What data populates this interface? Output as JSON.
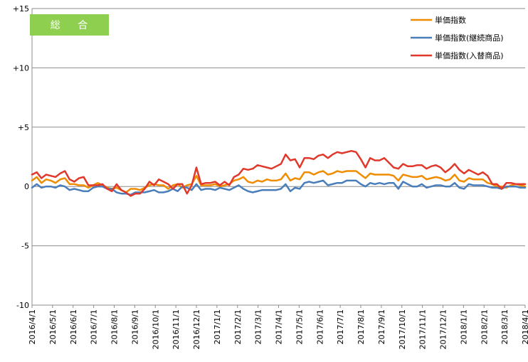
{
  "chart_data": {
    "type": "line",
    "title": "",
    "badge": "総 合",
    "badge_color": "#8fcf50",
    "xlabel": "",
    "ylabel": "",
    "ylim": [
      -10,
      15
    ],
    "y_ticks": [
      {
        "v": 15,
        "label": "+15"
      },
      {
        "v": 10,
        "label": "+10"
      },
      {
        "v": 5,
        "label": "+5"
      },
      {
        "v": 0,
        "label": "0"
      },
      {
        "v": -5,
        "label": "-5"
      },
      {
        "v": -10,
        "label": "-10"
      }
    ],
    "grid": "horizontal",
    "legend_position": "top-right",
    "x_labels": [
      "2016/4/1",
      "2016/5/1",
      "2016/6/1",
      "2016/7/1",
      "2016/8/1",
      "2016/9/1",
      "2016/10/1",
      "2016/11/1",
      "2016/12/1",
      "2017/1/1",
      "2017/2/1",
      "2017/3/1",
      "2017/4/1",
      "2017/5/1",
      "2017/6/1",
      "2017/7/1",
      "2017/8/1",
      "2017/9/1",
      "2017/10/1",
      "2017/11/1",
      "2017/12/1",
      "2018/1/1",
      "2018/2/1",
      "2018/3/1",
      "2018/4/1"
    ],
    "series": [
      {
        "name": "単価指数",
        "color": "#f08c00",
        "values": [
          0.5,
          0.8,
          0.3,
          0.6,
          0.5,
          0.3,
          0.6,
          0.7,
          0.2,
          0.2,
          0.1,
          0.1,
          -0.1,
          0.1,
          0.3,
          0.1,
          -0.1,
          -0.2,
          -0.1,
          -0.3,
          -0.5,
          -0.2,
          -0.2,
          -0.3,
          -0.1,
          0.1,
          0.2,
          0.1,
          0.1,
          -0.2,
          0.1,
          0.2,
          -0.1,
          0.1,
          0.2,
          0.9,
          0.1,
          0.1,
          0.1,
          0.2,
          0.0,
          0.1,
          0.2,
          0.5,
          0.6,
          0.8,
          0.4,
          0.3,
          0.5,
          0.4,
          0.6,
          0.5,
          0.5,
          0.6,
          1.1,
          0.5,
          0.7,
          0.6,
          1.2,
          1.2,
          1.0,
          1.2,
          1.3,
          1.0,
          1.1,
          1.3,
          1.2,
          1.3,
          1.3,
          1.3,
          1.0,
          0.7,
          1.1,
          1.0,
          1.0,
          1.0,
          1.0,
          0.9,
          0.5,
          1.0,
          0.9,
          0.8,
          0.8,
          0.9,
          0.6,
          0.7,
          0.8,
          0.7,
          0.5,
          0.6,
          1.0,
          0.5,
          0.4,
          0.7,
          0.6,
          0.6,
          0.6,
          0.3,
          0.2,
          0.0,
          0.0,
          -0.1,
          0.1,
          0.2,
          0.1,
          0.0
        ]
      },
      {
        "name": "単価指数(継続商品)",
        "color": "#4a7ebb",
        "values": [
          -0.1,
          0.2,
          -0.1,
          0.0,
          0.0,
          -0.1,
          0.1,
          0.0,
          -0.3,
          -0.2,
          -0.3,
          -0.4,
          -0.4,
          -0.1,
          0.0,
          0.0,
          -0.2,
          -0.2,
          -0.5,
          -0.6,
          -0.6,
          -0.7,
          -0.5,
          -0.5,
          -0.5,
          -0.4,
          -0.3,
          -0.5,
          -0.5,
          -0.4,
          -0.2,
          -0.4,
          0.0,
          -0.1,
          -0.3,
          0.2,
          -0.3,
          -0.2,
          -0.2,
          -0.3,
          -0.1,
          -0.2,
          -0.3,
          -0.1,
          0.1,
          -0.2,
          -0.4,
          -0.5,
          -0.4,
          -0.3,
          -0.3,
          -0.3,
          -0.3,
          -0.2,
          0.2,
          -0.4,
          -0.1,
          -0.2,
          0.3,
          0.4,
          0.3,
          0.4,
          0.5,
          0.1,
          0.2,
          0.3,
          0.3,
          0.5,
          0.5,
          0.5,
          0.2,
          0.0,
          0.3,
          0.2,
          0.3,
          0.2,
          0.3,
          0.3,
          -0.2,
          0.4,
          0.2,
          0.0,
          0.0,
          0.2,
          -0.1,
          0.0,
          0.1,
          0.1,
          0.0,
          0.0,
          0.3,
          -0.1,
          -0.2,
          0.2,
          0.1,
          0.1,
          0.1,
          0.0,
          -0.1,
          -0.1,
          -0.2,
          0.0,
          0.0,
          0.0,
          -0.1,
          -0.1
        ]
      },
      {
        "name": "単価指数(入替商品)",
        "color": "#e0392b",
        "values": [
          1.0,
          1.2,
          0.7,
          1.0,
          0.9,
          0.8,
          1.1,
          1.3,
          0.6,
          0.4,
          0.7,
          0.8,
          0.1,
          0.1,
          0.1,
          0.2,
          -0.2,
          -0.4,
          0.2,
          -0.3,
          -0.5,
          -0.8,
          -0.6,
          -0.6,
          -0.2,
          0.4,
          0.1,
          0.6,
          0.4,
          0.2,
          -0.2,
          0.2,
          0.2,
          -0.6,
          0.1,
          1.6,
          0.2,
          0.3,
          0.3,
          0.4,
          0.1,
          0.4,
          0.1,
          0.8,
          1.0,
          1.5,
          1.4,
          1.5,
          1.8,
          1.7,
          1.6,
          1.5,
          1.7,
          1.9,
          2.7,
          2.2,
          2.3,
          1.6,
          2.4,
          2.4,
          2.3,
          2.6,
          2.7,
          2.4,
          2.7,
          2.9,
          2.8,
          2.9,
          3.0,
          2.9,
          2.3,
          1.6,
          2.4,
          2.2,
          2.2,
          2.4,
          2.0,
          1.6,
          1.5,
          1.9,
          1.7,
          1.7,
          1.8,
          1.8,
          1.5,
          1.7,
          1.8,
          1.6,
          1.2,
          1.5,
          1.9,
          1.4,
          1.1,
          1.4,
          1.2,
          1.0,
          1.2,
          0.9,
          0.2,
          0.2,
          -0.2,
          0.3,
          0.3,
          0.2,
          0.2,
          0.2
        ]
      }
    ]
  }
}
